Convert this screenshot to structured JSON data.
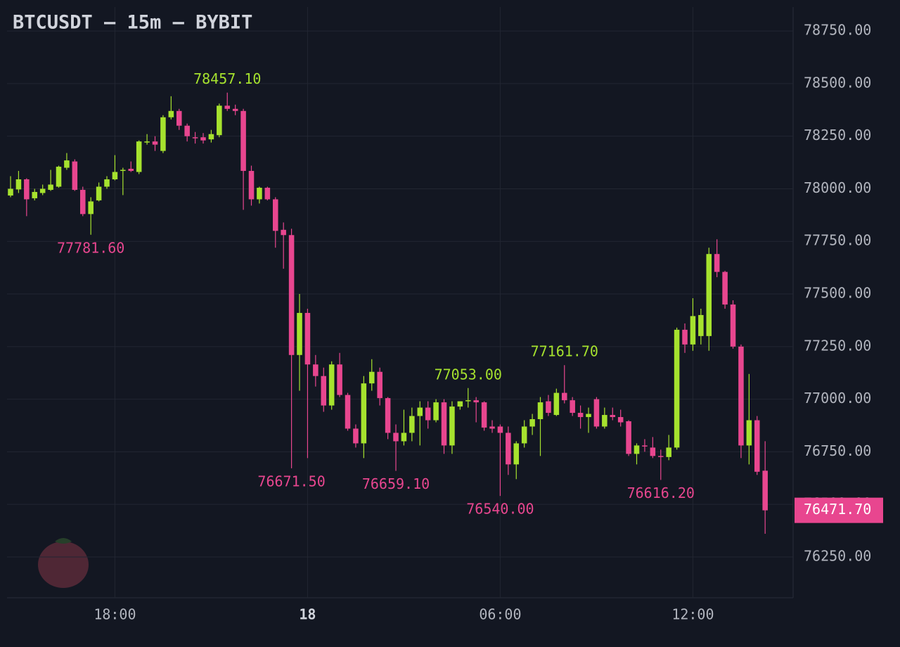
{
  "chart_data": {
    "type": "candlestick",
    "title": "BTCUSDT — 15m — BYBIT",
    "up_color": "#a6e22e",
    "down_color": "#e8468f",
    "grid": true,
    "categories": [
      null,
      null,
      null,
      null,
      null,
      null,
      null,
      null,
      null,
      null,
      null,
      null,
      null,
      "18:00",
      null,
      null,
      null,
      null,
      null,
      null,
      null,
      null,
      null,
      null,
      null,
      null,
      null,
      null,
      null,
      null,
      null,
      null,
      null,
      null,
      null,
      null,
      null,
      "18",
      null,
      null,
      null,
      null,
      null,
      null,
      null,
      null,
      null,
      null,
      null,
      null,
      null,
      null,
      null,
      null,
      null,
      null,
      null,
      null,
      null,
      null,
      null,
      "06:00",
      null,
      null,
      null,
      null,
      null,
      null,
      null,
      null,
      null,
      null,
      null,
      null,
      null,
      null,
      null,
      null,
      null,
      null,
      null,
      null,
      null,
      null,
      null,
      "12:00",
      null,
      null,
      null,
      null,
      null,
      null,
      null,
      null,
      null
    ],
    "open": [
      77968,
      77997,
      78045,
      77955,
      77980,
      77995,
      78010,
      78100,
      78130,
      77995,
      77880,
      77945,
      78010,
      78045,
      78085,
      78095,
      78080,
      78220,
      78225,
      78180,
      78340,
      78370,
      78300,
      78245,
      78245,
      78235,
      78255,
      78395,
      78380,
      78370,
      78085,
      77950,
      78005,
      77950,
      77805,
      77780,
      77210,
      77410,
      77165,
      77110,
      76970,
      77165,
      77020,
      76860,
      76790,
      77075,
      77130,
      77005,
      76840,
      76800,
      76840,
      76920,
      76960,
      76900,
      76985,
      76780,
      76965,
      76990,
      76995,
      76985,
      76870,
      76870,
      76840,
      76690,
      76790,
      76870,
      76905,
      76990,
      76925,
      77030,
      76995,
      76935,
      76915,
      77000,
      76870,
      76925,
      76915,
      76895,
      76740,
      76780,
      76770,
      76730,
      76725,
      76770,
      77330,
      77260,
      77300,
      77300,
      77690,
      77605,
      77450,
      77250,
      76780,
      76900,
      76660
    ],
    "high": [
      78060,
      78085,
      78050,
      78000,
      78020,
      78090,
      78110,
      78170,
      78140,
      78010,
      77960,
      78030,
      78060,
      78160,
      78100,
      78130,
      78230,
      78260,
      78250,
      78350,
      78440,
      78380,
      78310,
      78270,
      78265,
      78280,
      78405,
      78457.1,
      78400,
      78380,
      78110,
      78010,
      78010,
      77960,
      77840,
      77810,
      77500,
      77430,
      77210,
      77150,
      77180,
      77220,
      77030,
      76880,
      77110,
      77190,
      77150,
      77010,
      76880,
      76950,
      76960,
      76990,
      76990,
      77000,
      77000,
      76990,
      76990,
      77053,
      77010,
      76990,
      76900,
      76880,
      76870,
      76800,
      76900,
      76930,
      77010,
      77020,
      77050,
      77161.7,
      77010,
      76970,
      76960,
      77010,
      76960,
      76960,
      76950,
      76900,
      76790,
      76810,
      76820,
      76760,
      76830,
      77340,
      77360,
      77480,
      77430,
      77720,
      77760,
      77610,
      77470,
      77260,
      77120,
      76920,
      76800
    ],
    "low": [
      77960,
      77980,
      77870,
      77945,
      77970,
      77990,
      78005,
      78090,
      77990,
      77870,
      77781.6,
      77940,
      78000,
      78040,
      77970,
      78080,
      78070,
      78210,
      78180,
      78170,
      78330,
      78280,
      78225,
      78215,
      78215,
      78220,
      78245,
      78370,
      78350,
      77900,
      77920,
      77930,
      77945,
      77720,
      77620,
      76671.5,
      77040,
      76720,
      77060,
      76940,
      76950,
      77010,
      76850,
      76770,
      76720,
      77040,
      76970,
      76810,
      76659.1,
      76780,
      76800,
      76780,
      76860,
      76890,
      76740,
      76740,
      76950,
      76960,
      76890,
      76850,
      76840,
      76540,
      76640,
      76620,
      76770,
      76830,
      76730,
      76920,
      76920,
      76980,
      76920,
      76860,
      76840,
      76860,
      76860,
      76900,
      76870,
      76730,
      76690,
      76750,
      76720,
      76616.2,
      76710,
      76760,
      77220,
      77230,
      77260,
      77230,
      77580,
      77430,
      77240,
      76720,
      76690,
      76640,
      76360
    ],
    "close": [
      78000,
      78045,
      77950,
      77985,
      78000,
      78020,
      78105,
      78135,
      77995,
      77880,
      77940,
      78010,
      78045,
      78080,
      78090,
      78085,
      78225,
      78225,
      78210,
      78340,
      78370,
      78300,
      78250,
      78240,
      78230,
      78260,
      78395,
      78380,
      78370,
      78085,
      77950,
      78005,
      77950,
      77800,
      77780,
      77210,
      77410,
      77165,
      77110,
      76970,
      77165,
      77020,
      76860,
      76790,
      77075,
      77130,
      77005,
      76840,
      76800,
      76840,
      76920,
      76960,
      76900,
      76985,
      76780,
      76965,
      76990,
      76995,
      76985,
      76865,
      76860,
      76840,
      76690,
      76790,
      76870,
      76905,
      76985,
      76935,
      77030,
      76995,
      76935,
      76915,
      76930,
      76870,
      76925,
      76915,
      76890,
      76740,
      76780,
      76775,
      76730,
      76725,
      76770,
      77330,
      77260,
      77395,
      77400,
      77690,
      77605,
      77450,
      77250,
      76780,
      76900,
      76655,
      76471.7
    ],
    "ylim": [
      76056,
      78864
    ],
    "yticks": [
      {
        "value": 76250,
        "label": "76250.00"
      },
      {
        "value": 76500,
        "label": "76500.00"
      },
      {
        "value": 76750,
        "label": "76750.00"
      },
      {
        "value": 77000,
        "label": "77000.00"
      },
      {
        "value": 77250,
        "label": "77250.00"
      },
      {
        "value": 77500,
        "label": "77500.00"
      },
      {
        "value": 77750,
        "label": "77750.00"
      },
      {
        "value": 78000,
        "label": "78000.00"
      },
      {
        "value": 78250,
        "label": "78250.00"
      },
      {
        "value": 78500,
        "label": "78500.00"
      },
      {
        "value": 78750,
        "label": "78750.00"
      }
    ],
    "annotations": [
      {
        "value": 78457.1,
        "label": "78457.10"
      },
      {
        "value": 77781.6,
        "label": "77781.60"
      },
      {
        "value": 76671.5,
        "label": "76671.50"
      },
      {
        "value": 76659.1,
        "label": "76659.10"
      },
      {
        "value": 77053,
        "label": "77053.00"
      },
      {
        "value": 76540,
        "label": "76540.00"
      },
      {
        "value": 77161.7,
        "label": "77161.70"
      },
      {
        "value": 76616.2,
        "label": "76616.20"
      }
    ],
    "last_price": {
      "value": 76471.7,
      "label": "76471.70"
    }
  }
}
